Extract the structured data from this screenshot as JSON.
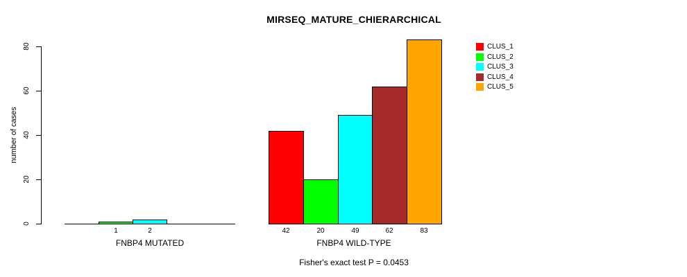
{
  "chart_data": {
    "type": "bar",
    "title": "MIRSEQ_MATURE_CHIERARCHICAL",
    "ylabel": "number of cases",
    "xlabel": "",
    "ylim": [
      0,
      80
    ],
    "yticks": [
      0,
      20,
      40,
      60,
      80
    ],
    "grid": false,
    "legend_position": "right",
    "legend": [
      {
        "label": "CLUS_1",
        "color": "#FF0000"
      },
      {
        "label": "CLUS_2",
        "color": "#00FF00"
      },
      {
        "label": "CLUS_3",
        "color": "#00FFFF"
      },
      {
        "label": "CLUS_4",
        "color": "#A52A2A"
      },
      {
        "label": "CLUS_5",
        "color": "#FFA500"
      }
    ],
    "groups": [
      {
        "label": "FNBP4 MUTATED",
        "values": [
          0,
          1,
          2,
          0,
          0
        ],
        "bar_labels": [
          "",
          "1",
          "2",
          "",
          ""
        ]
      },
      {
        "label": "FNBP4 WILD-TYPE",
        "values": [
          42,
          20,
          49,
          62,
          83
        ],
        "bar_labels": [
          "42",
          "20",
          "49",
          "62",
          "83"
        ]
      }
    ],
    "footnote": "Fisher's exact test P = 0.0453"
  },
  "colors": {
    "background": "#FFFFFF",
    "axis": "#000000",
    "text": "#000000"
  }
}
